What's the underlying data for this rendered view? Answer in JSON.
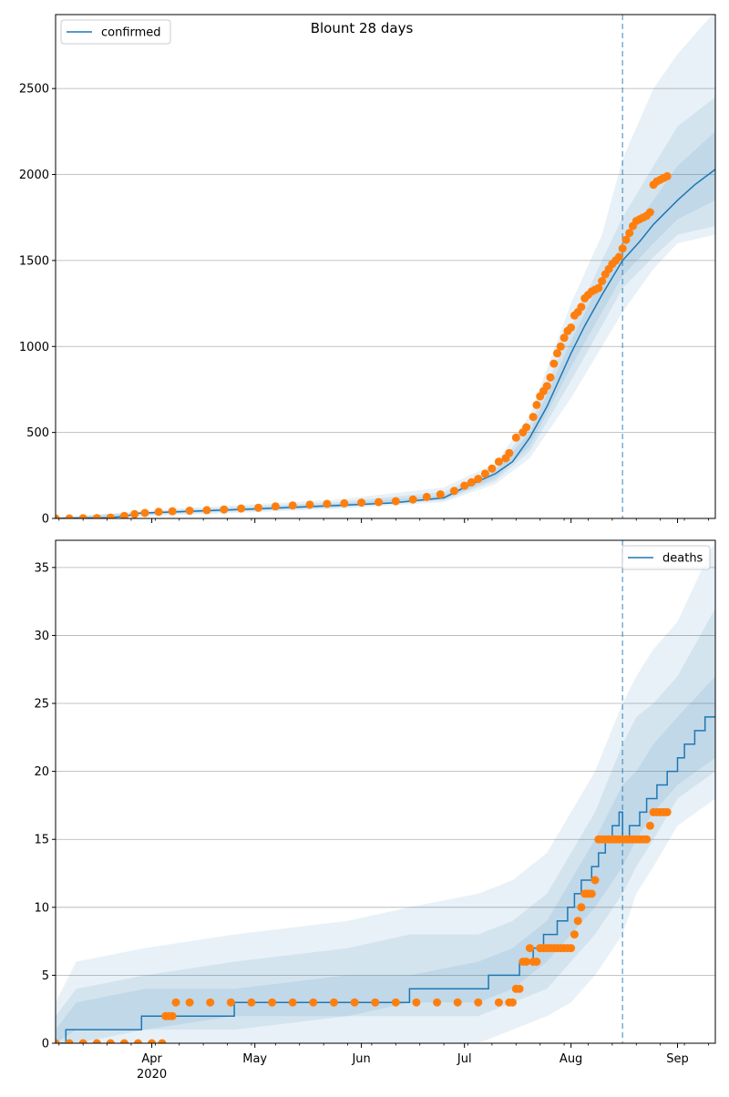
{
  "title": "Blount 28 days",
  "colors": {
    "model": "#1f77b4",
    "observed": "#ff7f0e",
    "grid": "#b0b0b0",
    "axis": "#000000"
  },
  "x_ticks": [
    {
      "label": "Apr",
      "sublabel": "2020",
      "date": "2020-04-01"
    },
    {
      "label": "May",
      "sublabel": "",
      "date": "2020-05-01"
    },
    {
      "label": "Jun",
      "sublabel": "",
      "date": "2020-06-01"
    },
    {
      "label": "Jul",
      "sublabel": "",
      "date": "2020-07-01"
    },
    {
      "label": "Aug",
      "sublabel": "",
      "date": "2020-08-01"
    },
    {
      "label": "Sep",
      "sublabel": "",
      "date": "2020-09-01"
    }
  ],
  "chart_data": [
    {
      "type": "line",
      "legend": {
        "label": "confirmed",
        "position": "upper-left"
      },
      "xlim": [
        "2020-03-04",
        "2020-09-12"
      ],
      "ylim": [
        0,
        2930
      ],
      "grid": "y",
      "forecast_start": "2020-08-16",
      "y_ticks": [
        0,
        500,
        1000,
        1500,
        2000,
        2500
      ],
      "median": {
        "x": [
          "2020-03-04",
          "2020-03-20",
          "2020-03-25",
          "2020-03-28",
          "2020-04-10",
          "2020-05-01",
          "2020-05-25",
          "2020-06-10",
          "2020-06-25",
          "2020-07-01",
          "2020-07-10",
          "2020-07-15",
          "2020-07-20",
          "2020-07-25",
          "2020-08-01",
          "2020-08-05",
          "2020-08-10",
          "2020-08-16",
          "2020-08-21",
          "2020-08-25",
          "2020-09-01",
          "2020-09-06",
          "2020-09-12"
        ],
        "y": [
          0,
          5,
          15,
          30,
          40,
          55,
          75,
          90,
          120,
          180,
          260,
          330,
          470,
          650,
          960,
          1120,
          1300,
          1500,
          1610,
          1710,
          1850,
          1940,
          2030
        ]
      },
      "bands": [
        {
          "x": [
            "2020-03-04",
            "2020-04-10",
            "2020-05-25",
            "2020-06-25",
            "2020-07-10",
            "2020-07-20",
            "2020-08-01",
            "2020-08-10",
            "2020-08-16",
            "2020-08-25",
            "2020-09-01",
            "2020-09-12"
          ],
          "lower": [
            0,
            20,
            55,
            95,
            200,
            350,
            700,
            1000,
            1200,
            1450,
            1600,
            1650
          ],
          "upper": [
            5,
            60,
            110,
            180,
            320,
            600,
            1250,
            1650,
            2090,
            2500,
            2700,
            2950
          ]
        },
        {
          "x": [
            "2020-03-04",
            "2020-04-10",
            "2020-05-25",
            "2020-06-25",
            "2020-07-10",
            "2020-07-20",
            "2020-08-01",
            "2020-08-10",
            "2020-08-16",
            "2020-08-25",
            "2020-09-01",
            "2020-09-12"
          ],
          "lower": [
            0,
            28,
            62,
            105,
            220,
            390,
            800,
            1120,
            1340,
            1520,
            1650,
            1700
          ],
          "upper": [
            5,
            52,
            95,
            155,
            290,
            540,
            1110,
            1500,
            1750,
            2050,
            2280,
            2450
          ]
        },
        {
          "x": [
            "2020-03-04",
            "2020-04-10",
            "2020-05-25",
            "2020-06-25",
            "2020-07-10",
            "2020-07-20",
            "2020-08-01",
            "2020-08-10",
            "2020-08-16",
            "2020-08-25",
            "2020-09-01",
            "2020-09-12"
          ],
          "lower": [
            0,
            33,
            68,
            112,
            235,
            420,
            880,
            1200,
            1410,
            1600,
            1740,
            1850
          ],
          "upper": [
            5,
            47,
            85,
            135,
            275,
            500,
            1030,
            1400,
            1600,
            1850,
            2050,
            2250
          ]
        }
      ],
      "observed": {
        "x": [
          "2020-03-04",
          "2020-03-08",
          "2020-03-12",
          "2020-03-16",
          "2020-03-20",
          "2020-03-24",
          "2020-03-27",
          "2020-03-30",
          "2020-04-03",
          "2020-04-07",
          "2020-04-12",
          "2020-04-17",
          "2020-04-22",
          "2020-04-27",
          "2020-05-02",
          "2020-05-07",
          "2020-05-12",
          "2020-05-17",
          "2020-05-22",
          "2020-05-27",
          "2020-06-01",
          "2020-06-06",
          "2020-06-11",
          "2020-06-16",
          "2020-06-20",
          "2020-06-24",
          "2020-06-28",
          "2020-07-01",
          "2020-07-03",
          "2020-07-05",
          "2020-07-07",
          "2020-07-09",
          "2020-07-11",
          "2020-07-13",
          "2020-07-14",
          "2020-07-16",
          "2020-07-18",
          "2020-07-19",
          "2020-07-21",
          "2020-07-22",
          "2020-07-23",
          "2020-07-24",
          "2020-07-25",
          "2020-07-26",
          "2020-07-27",
          "2020-07-28",
          "2020-07-29",
          "2020-07-30",
          "2020-07-31",
          "2020-08-01",
          "2020-08-02",
          "2020-08-03",
          "2020-08-04",
          "2020-08-05",
          "2020-08-06",
          "2020-08-07",
          "2020-08-08",
          "2020-08-09",
          "2020-08-10",
          "2020-08-11",
          "2020-08-12",
          "2020-08-13",
          "2020-08-14",
          "2020-08-15",
          "2020-08-16",
          "2020-08-17",
          "2020-08-18",
          "2020-08-19",
          "2020-08-20",
          "2020-08-21",
          "2020-08-22",
          "2020-08-23",
          "2020-08-24",
          "2020-08-25",
          "2020-08-26",
          "2020-08-27",
          "2020-08-28",
          "2020-08-29"
        ],
        "y": [
          0,
          0,
          1,
          2,
          5,
          15,
          25,
          32,
          38,
          42,
          45,
          48,
          52,
          58,
          62,
          70,
          75,
          80,
          85,
          88,
          92,
          95,
          100,
          110,
          125,
          140,
          160,
          190,
          210,
          230,
          260,
          290,
          330,
          350,
          380,
          470,
          500,
          530,
          590,
          660,
          710,
          740,
          770,
          820,
          900,
          960,
          1000,
          1050,
          1090,
          1110,
          1180,
          1200,
          1230,
          1280,
          1300,
          1320,
          1330,
          1340,
          1380,
          1420,
          1450,
          1480,
          1500,
          1520,
          1570,
          1620,
          1660,
          1700,
          1730,
          1740,
          1750,
          1760,
          1780,
          1940,
          1960,
          1970,
          1980,
          1990
        ]
      }
    },
    {
      "type": "line",
      "legend": {
        "label": "deaths",
        "position": "upper-right"
      },
      "xlim": [
        "2020-03-04",
        "2020-09-12"
      ],
      "ylim": [
        0,
        37
      ],
      "grid": "y",
      "forecast_start": "2020-08-16",
      "y_ticks": [
        0,
        5,
        10,
        15,
        20,
        25,
        30,
        35
      ],
      "median": {
        "x": [
          "2020-03-04",
          "2020-03-07",
          "2020-03-29",
          "2020-04-25",
          "2020-05-28",
          "2020-06-15",
          "2020-07-08",
          "2020-07-15",
          "2020-07-17",
          "2020-07-21",
          "2020-07-24",
          "2020-07-28",
          "2020-07-31",
          "2020-08-02",
          "2020-08-04",
          "2020-08-07",
          "2020-08-09",
          "2020-08-11",
          "2020-08-13",
          "2020-08-14",
          "2020-08-15",
          "2020-08-16",
          "2020-08-18",
          "2020-08-21",
          "2020-08-23",
          "2020-08-26",
          "2020-08-29",
          "2020-09-01",
          "2020-09-03",
          "2020-09-06",
          "2020-09-09",
          "2020-09-12"
        ],
        "y": [
          0,
          1,
          2,
          3,
          3,
          4,
          5,
          5,
          6,
          7,
          8,
          9,
          10,
          11,
          12,
          13,
          14,
          15,
          16,
          16,
          17,
          15,
          16,
          17,
          18,
          19,
          20,
          21,
          22,
          23,
          24,
          24
        ]
      },
      "bands": [
        {
          "x": [
            "2020-03-04",
            "2020-03-10",
            "2020-03-30",
            "2020-04-25",
            "2020-05-28",
            "2020-06-15",
            "2020-07-05",
            "2020-07-15",
            "2020-07-25",
            "2020-08-01",
            "2020-08-08",
            "2020-08-16",
            "2020-08-20",
            "2020-08-25",
            "2020-09-01",
            "2020-09-12"
          ],
          "lower": [
            0,
            0,
            0,
            0,
            0,
            0,
            0,
            1,
            2,
            3,
            5,
            8,
            11,
            13,
            16,
            18
          ],
          "upper": [
            3,
            6,
            7,
            8,
            9,
            10,
            11,
            12,
            14,
            17,
            20,
            25,
            27,
            29,
            31,
            37
          ]
        },
        {
          "x": [
            "2020-03-04",
            "2020-03-10",
            "2020-03-30",
            "2020-04-25",
            "2020-05-28",
            "2020-06-15",
            "2020-07-05",
            "2020-07-15",
            "2020-07-25",
            "2020-08-01",
            "2020-08-08",
            "2020-08-16",
            "2020-08-20",
            "2020-08-25",
            "2020-09-01",
            "2020-09-12"
          ],
          "lower": [
            0,
            0,
            1,
            1,
            2,
            2,
            2,
            3,
            4,
            6,
            8,
            11,
            13,
            15,
            18,
            20
          ],
          "upper": [
            2,
            4,
            5,
            6,
            7,
            8,
            8,
            9,
            11,
            14,
            17,
            22,
            24,
            25,
            27,
            32
          ]
        },
        {
          "x": [
            "2020-03-04",
            "2020-03-10",
            "2020-03-30",
            "2020-04-25",
            "2020-05-28",
            "2020-06-15",
            "2020-07-05",
            "2020-07-15",
            "2020-07-25",
            "2020-08-01",
            "2020-08-08",
            "2020-08-16",
            "2020-08-20",
            "2020-08-25",
            "2020-09-01",
            "2020-09-12"
          ],
          "lower": [
            0,
            1,
            1,
            2,
            2,
            3,
            3,
            4,
            6,
            8,
            10,
            13,
            15,
            17,
            19,
            21
          ],
          "upper": [
            1,
            3,
            4,
            4,
            5,
            5,
            6,
            7,
            9,
            12,
            15,
            19,
            20,
            22,
            24,
            27
          ]
        }
      ],
      "observed": {
        "x": [
          "2020-03-04",
          "2020-03-08",
          "2020-03-12",
          "2020-03-16",
          "2020-03-20",
          "2020-03-24",
          "2020-03-28",
          "2020-04-01",
          "2020-04-04",
          "2020-04-05",
          "2020-04-06",
          "2020-04-07",
          "2020-04-08",
          "2020-04-12",
          "2020-04-18",
          "2020-04-24",
          "2020-04-30",
          "2020-05-06",
          "2020-05-12",
          "2020-05-18",
          "2020-05-24",
          "2020-05-30",
          "2020-06-05",
          "2020-06-11",
          "2020-06-17",
          "2020-06-23",
          "2020-06-29",
          "2020-07-05",
          "2020-07-11",
          "2020-07-14",
          "2020-07-15",
          "2020-07-16",
          "2020-07-17",
          "2020-07-18",
          "2020-07-19",
          "2020-07-20",
          "2020-07-21",
          "2020-07-22",
          "2020-07-23",
          "2020-07-24",
          "2020-07-25",
          "2020-07-26",
          "2020-07-27",
          "2020-07-28",
          "2020-07-29",
          "2020-07-30",
          "2020-07-31",
          "2020-08-01",
          "2020-08-02",
          "2020-08-03",
          "2020-08-04",
          "2020-08-05",
          "2020-08-06",
          "2020-08-07",
          "2020-08-08",
          "2020-08-09",
          "2020-08-10",
          "2020-08-11",
          "2020-08-12",
          "2020-08-13",
          "2020-08-14",
          "2020-08-15",
          "2020-08-16",
          "2020-08-17",
          "2020-08-18",
          "2020-08-19",
          "2020-08-20",
          "2020-08-21",
          "2020-08-22",
          "2020-08-23",
          "2020-08-24",
          "2020-08-25",
          "2020-08-26",
          "2020-08-27",
          "2020-08-28",
          "2020-08-29"
        ],
        "y": [
          0,
          0,
          0,
          0,
          0,
          0,
          0,
          0,
          0,
          2,
          2,
          2,
          3,
          3,
          3,
          3,
          3,
          3,
          3,
          3,
          3,
          3,
          3,
          3,
          3,
          3,
          3,
          3,
          3,
          3,
          3,
          4,
          4,
          6,
          6,
          7,
          6,
          6,
          7,
          7,
          7,
          7,
          7,
          7,
          7,
          7,
          7,
          7,
          8,
          9,
          10,
          11,
          11,
          11,
          12,
          15,
          15,
          15,
          15,
          15,
          15,
          15,
          15,
          15,
          15,
          15,
          15,
          15,
          15,
          15,
          16,
          17,
          17,
          17,
          17,
          17
        ]
      }
    }
  ]
}
